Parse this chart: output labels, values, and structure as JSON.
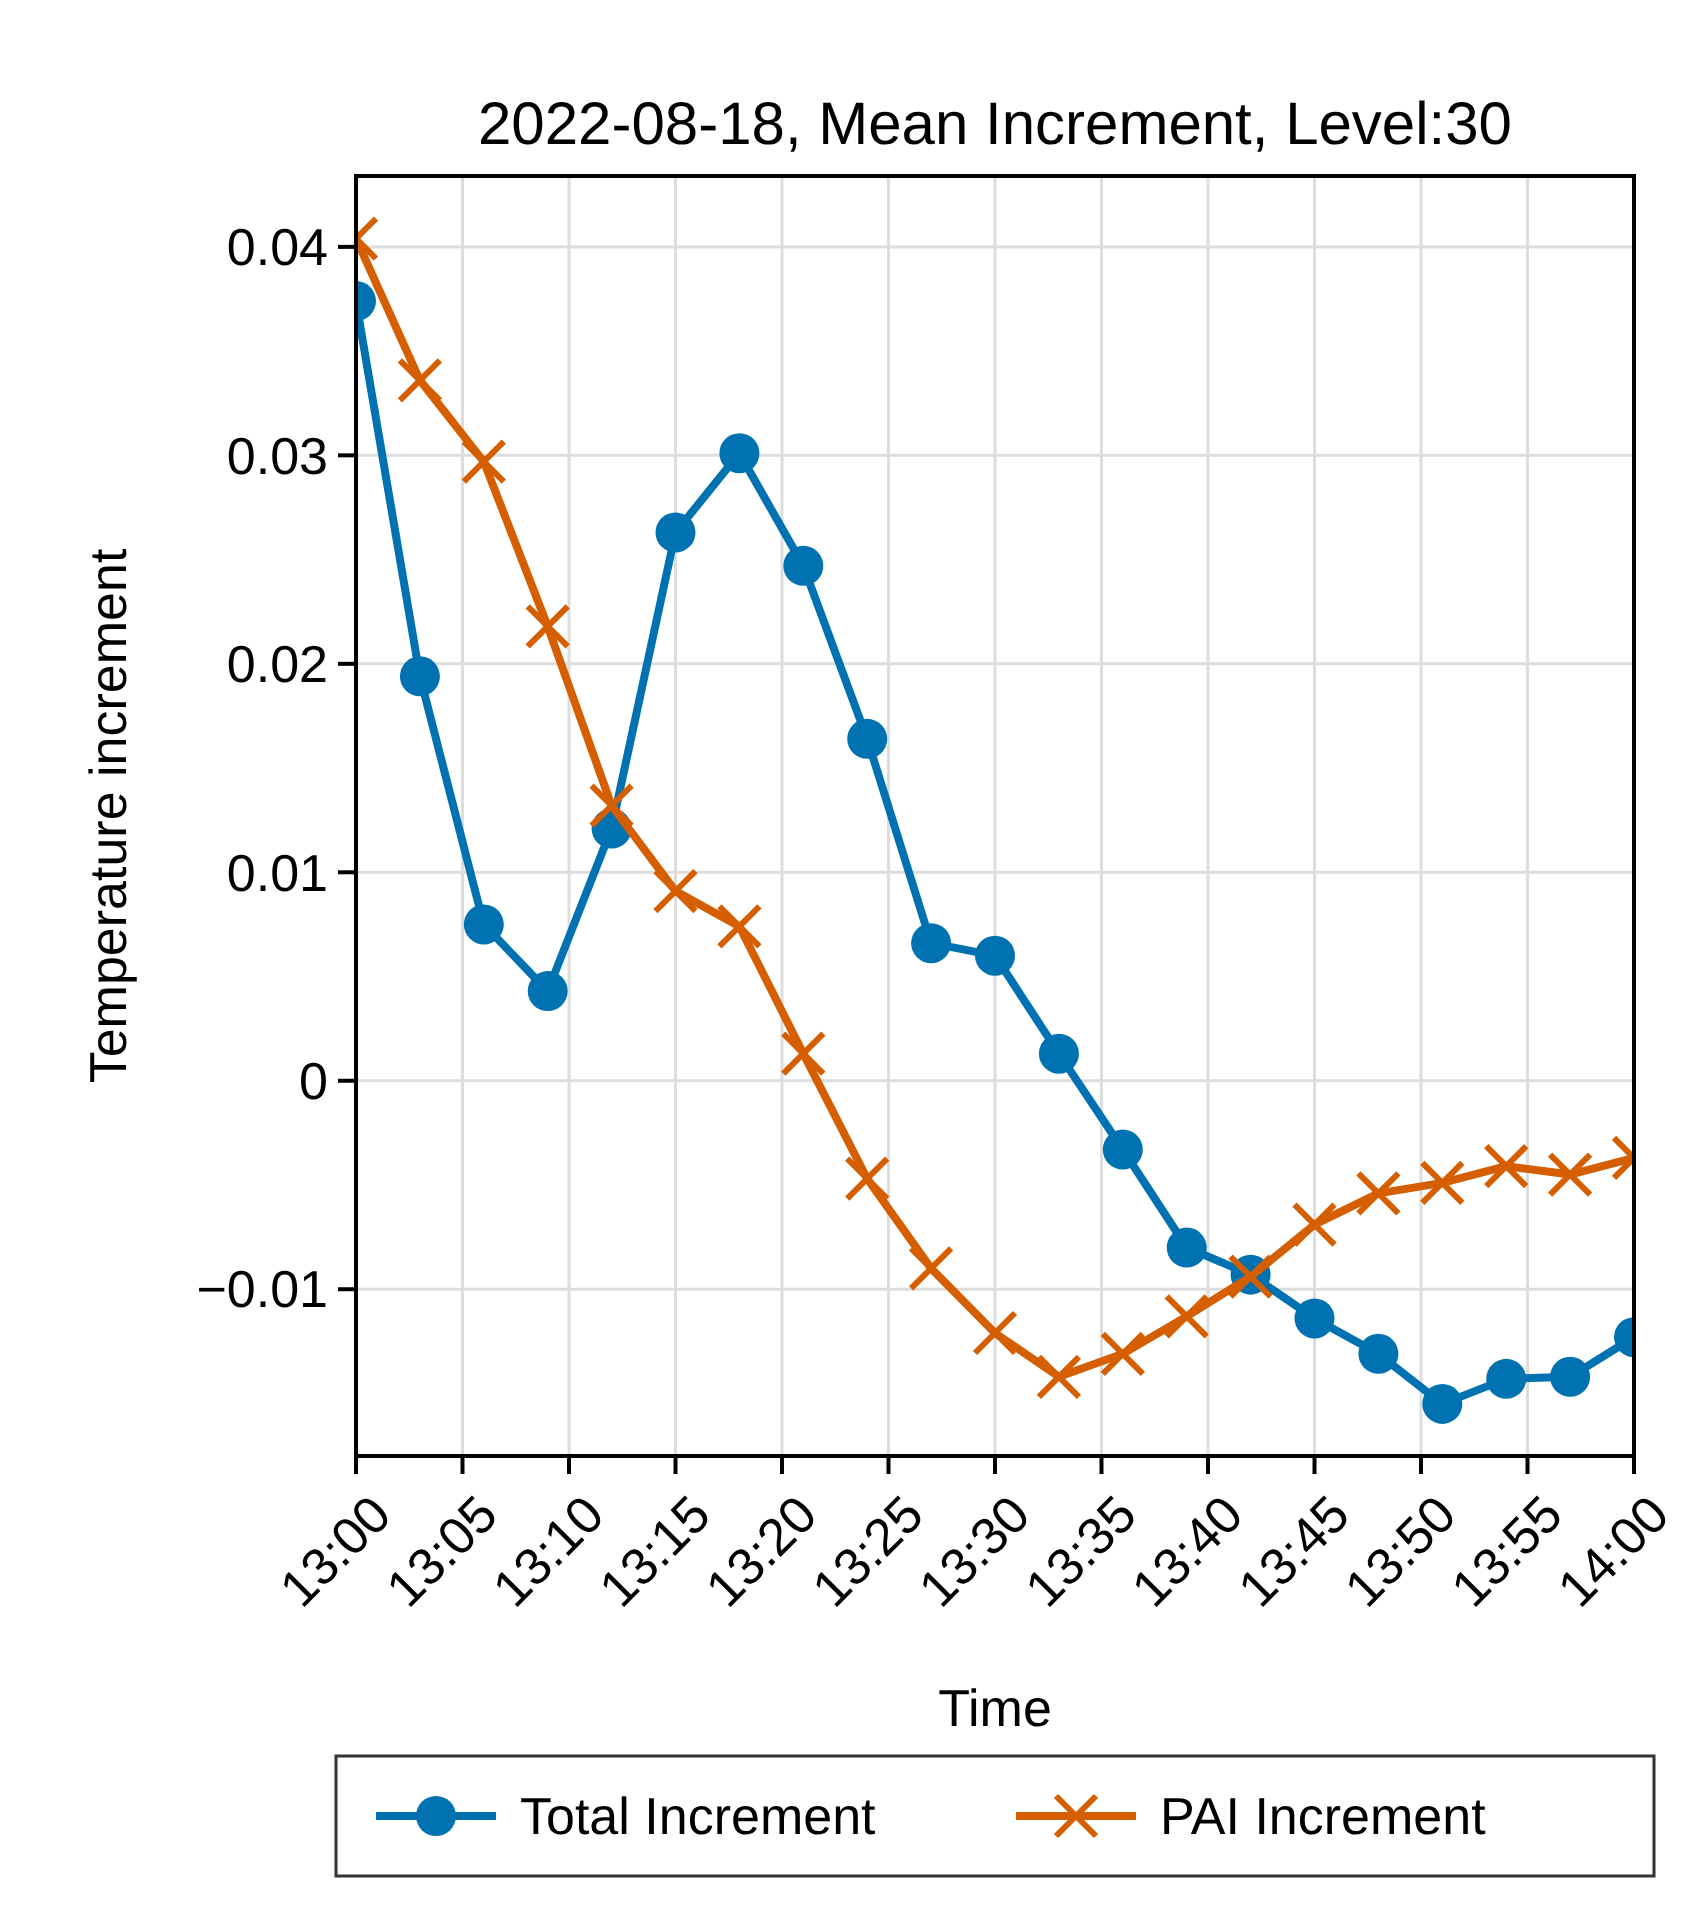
{
  "chart_data": {
    "type": "line",
    "title": "2022-08-18, Mean Increment, Level:30",
    "xlabel": "Time",
    "ylabel": "Temperature increment",
    "x": [
      13,
      13.05,
      13.1,
      13.15,
      13.2,
      13.25,
      13.3,
      13.35,
      13.4,
      13.45,
      13.5,
      13.55,
      13.6,
      13.65,
      13.7,
      13.75,
      13.8,
      13.85,
      13.9,
      13.95,
      14
    ],
    "series": [
      {
        "name": "Total Increment",
        "color": "#0072b2",
        "marker": "circle",
        "values": [
          0.0374,
          0.0194,
          0.0075,
          0.0043,
          0.0121,
          0.0263,
          0.0301,
          0.0247,
          0.0164,
          0.0066,
          0.006,
          0.0013,
          -0.0033,
          -0.008,
          -0.0093,
          -0.0114,
          -0.0131,
          -0.0155,
          -0.0143,
          -0.0142,
          -0.0123
        ]
      },
      {
        "name": "PAI Increment",
        "color": "#d55e00",
        "marker": "cross",
        "values": [
          0.0404,
          0.0336,
          0.0297,
          0.0218,
          0.0132,
          0.0091,
          0.0074,
          0.0013,
          -0.0047,
          -0.009,
          -0.0121,
          -0.0142,
          -0.0131,
          -0.0113,
          -0.0094,
          -0.0069,
          -0.0054,
          -0.0049,
          -0.0041,
          -0.0045,
          -0.0037
        ]
      }
    ],
    "xlim": [
      13,
      14
    ],
    "xticks": [
      {
        "value": 13,
        "label": "13:00"
      },
      {
        "value": 13.083333,
        "label": "13:05"
      },
      {
        "value": 13.166667,
        "label": "13:10"
      },
      {
        "value": 13.25,
        "label": "13:15"
      },
      {
        "value": 13.333333,
        "label": "13:20"
      },
      {
        "value": 13.416667,
        "label": "13:25"
      },
      {
        "value": 13.5,
        "label": "13:30"
      },
      {
        "value": 13.583333,
        "label": "13:35"
      },
      {
        "value": 13.666667,
        "label": "13:40"
      },
      {
        "value": 13.75,
        "label": "13:45"
      },
      {
        "value": 13.833333,
        "label": "13:50"
      },
      {
        "value": 13.916667,
        "label": "13:55"
      },
      {
        "value": 14,
        "label": "14:00"
      }
    ],
    "ylim": [
      -0.018,
      0.0434
    ],
    "yticks": [
      {
        "value": -0.01,
        "label": "−0.01"
      },
      0,
      0.01,
      0.02,
      0.03,
      0.04
    ],
    "grid": true,
    "legend": "bottom",
    "line_style": "solid"
  }
}
